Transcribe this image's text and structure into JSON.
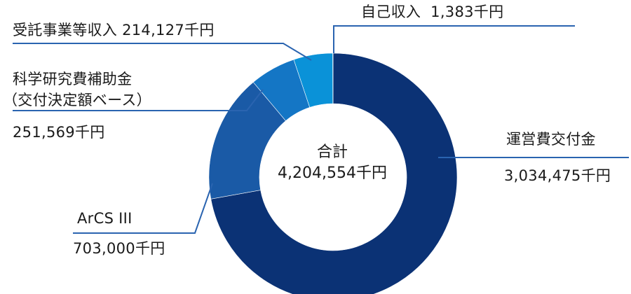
{
  "chart_data": {
    "type": "pie",
    "variant": "donut",
    "total_label": "合計",
    "total_value": "4,204,554千円",
    "slices": [
      {
        "name": "運営費交付金",
        "value": 3034475,
        "value_label": "3,034,475千円",
        "color": "#0b3275"
      },
      {
        "name": "ArCS III",
        "value": 703000,
        "value_label": "703,000千円",
        "color": "#1a5aa6"
      },
      {
        "name": "科学研究費補助金",
        "name_line2": "（交付決定額ベース）",
        "value": 251569,
        "value_label": "251,569千円",
        "color": "#1476c5"
      },
      {
        "name": "受託事業等収入",
        "value": 214127,
        "value_label": "214,127千円",
        "color": "#0a92d8"
      },
      {
        "name": "自己収入",
        "value": 1383,
        "value_label": "1,383千円",
        "color": "#8ecdf3"
      }
    ],
    "leader_color": "#2a64b0"
  }
}
